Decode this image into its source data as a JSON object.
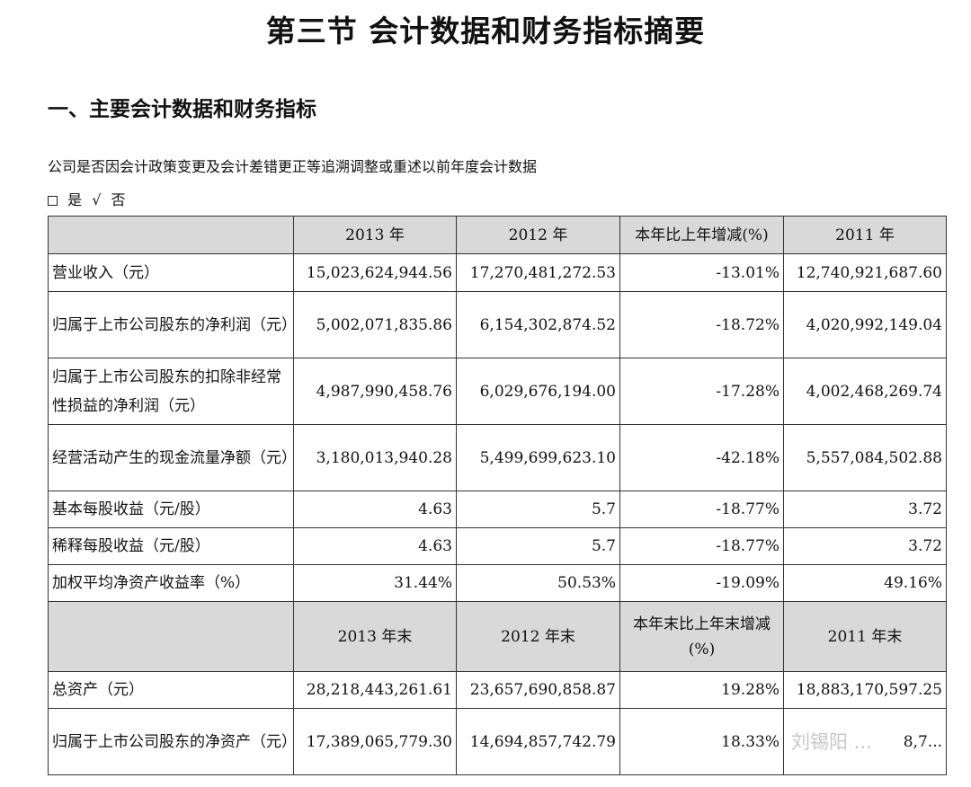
{
  "title": "第三节  会计数据和财务指标摘要",
  "section": "一、主要会计数据和财务指标",
  "note": "公司是否因会计政策变更及会计差错更正等追溯调整或重述以前年度会计数据",
  "choice": {
    "yes": "是",
    "check": "√",
    "no": "否"
  },
  "table1": {
    "headers": [
      "",
      "2013 年",
      "2012 年",
      "本年比上年增减(%)",
      "2011 年"
    ],
    "rows": [
      {
        "label": "营业收入（元）",
        "v2013": "15,023,624,944.56",
        "v2012": "17,270,481,272.53",
        "chg": "-13.01%",
        "v2011": "12,740,921,687.60"
      },
      {
        "label": "归属于上市公司股东的净利润（元）",
        "v2013": "5,002,071,835.86",
        "v2012": "6,154,302,874.52",
        "chg": "-18.72%",
        "v2011": "4,020,992,149.04"
      },
      {
        "label": "归属于上市公司股东的扣除非经常性损益的净利润（元）",
        "v2013": "4,987,990,458.76",
        "v2012": "6,029,676,194.00",
        "chg": "-17.28%",
        "v2011": "4,002,468,269.74"
      },
      {
        "label": "经营活动产生的现金流量净额（元）",
        "v2013": "3,180,013,940.28",
        "v2012": "5,499,699,623.10",
        "chg": "-42.18%",
        "v2011": "5,557,084,502.88"
      },
      {
        "label": "基本每股收益（元/股）",
        "v2013": "4.63",
        "v2012": "5.7",
        "chg": "-18.77%",
        "v2011": "3.72"
      },
      {
        "label": "稀释每股收益（元/股）",
        "v2013": "4.63",
        "v2012": "5.7",
        "chg": "-18.77%",
        "v2011": "3.72"
      },
      {
        "label": "加权平均净资产收益率（%）",
        "v2013": "31.44%",
        "v2012": "50.53%",
        "chg": "-19.09%",
        "v2011": "49.16%"
      }
    ]
  },
  "table2": {
    "headers": [
      "",
      "2013 年末",
      "2012 年末",
      "本年末比上年末增减(%)",
      "2011 年末"
    ],
    "rows": [
      {
        "label": "总资产（元）",
        "v2013": "28,218,443,261.61",
        "v2012": "23,657,690,858.87",
        "chg": "19.28%",
        "v2011": "18,883,170,597.25"
      },
      {
        "label": "归属于上市公司股东的净资产（元）",
        "v2013": "17,389,065,779.30",
        "v2012": "14,694,857,742.79",
        "chg": "18.33%",
        "v2011": "8,7..."
      }
    ]
  },
  "watermark": "刘锡阳 ..."
}
